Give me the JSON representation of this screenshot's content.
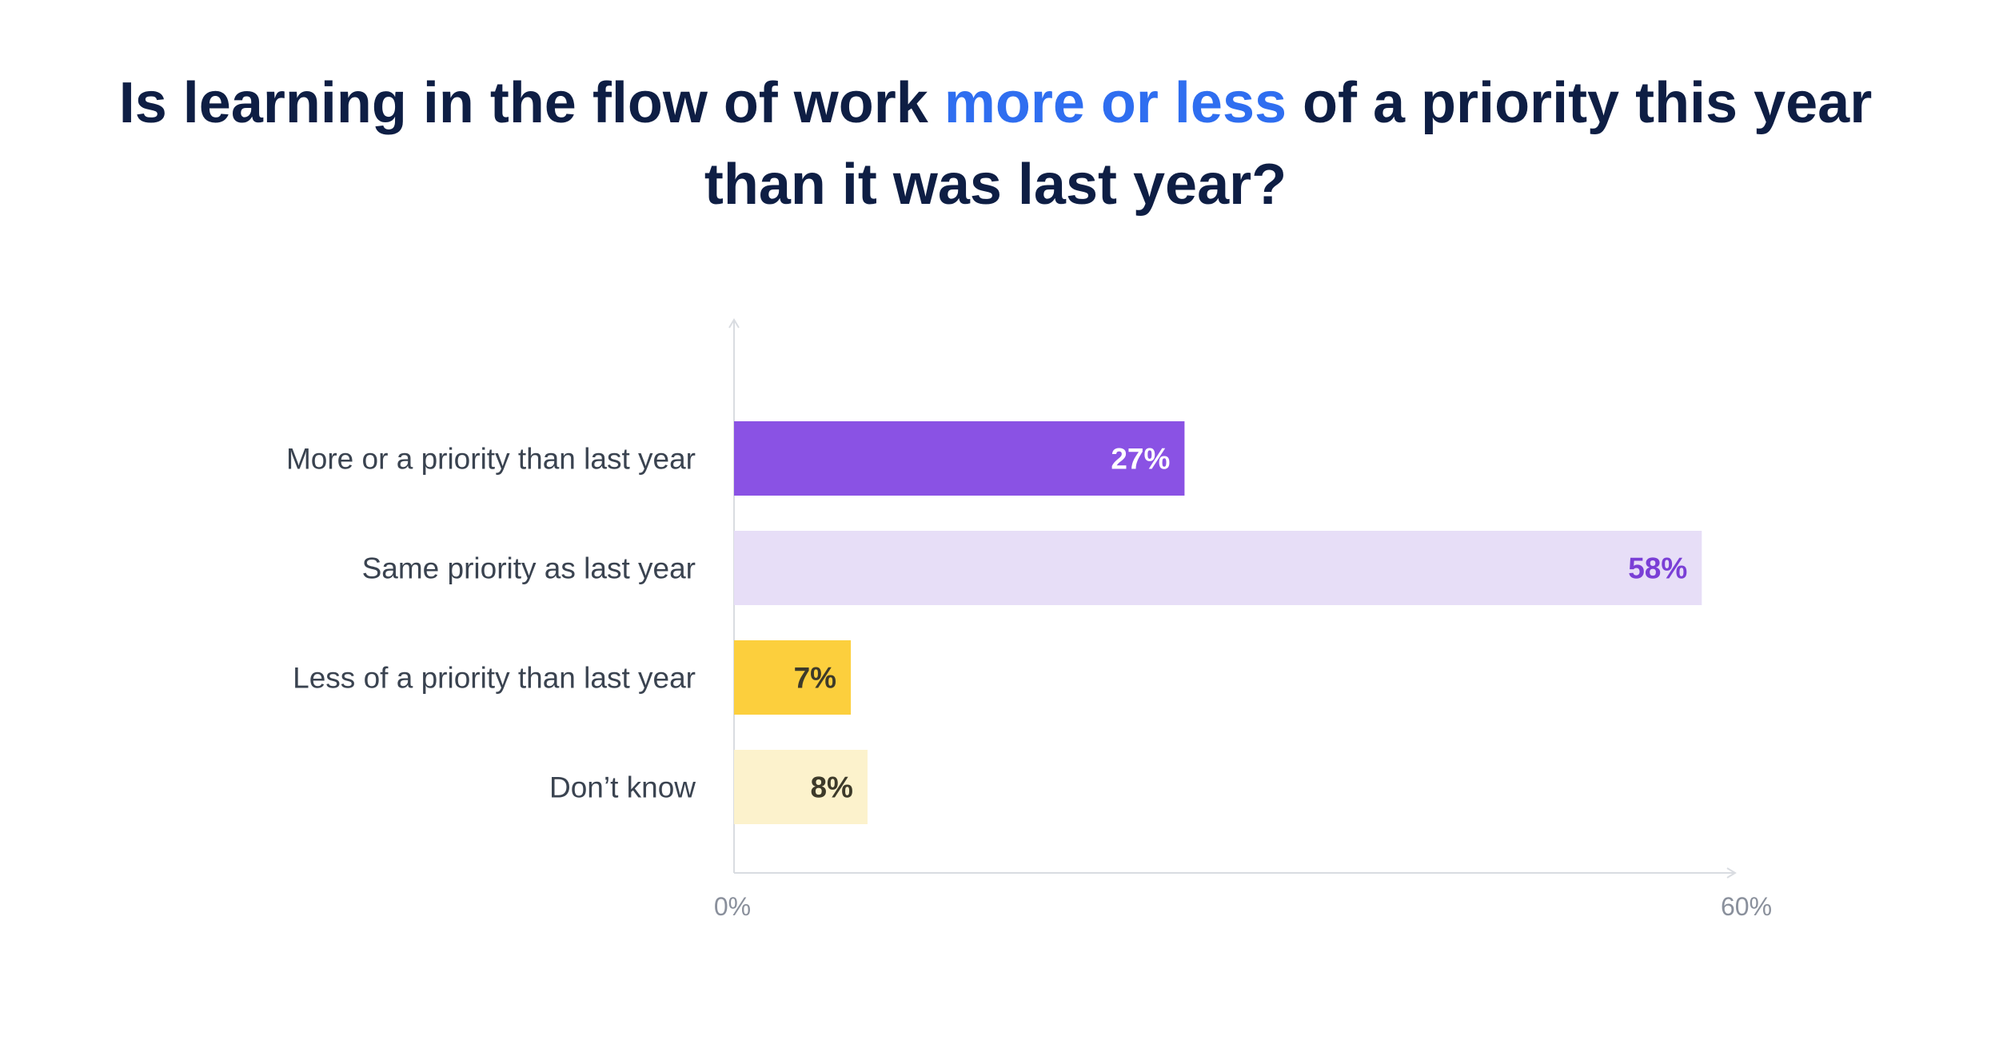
{
  "title": {
    "before": "Is learning in the flow of work ",
    "highlight": "more or less",
    "after": " of a priority this year than it was last year?"
  },
  "colors": {
    "title_text": "#0e1e44",
    "title_highlight": "#2f6ef0",
    "axis": "#d9dce1"
  },
  "chart_data": {
    "type": "bar",
    "orientation": "horizontal",
    "categories": [
      "More or a priority than last year",
      "Same priority as last year",
      "Less of a priority than last year",
      "Don’t know"
    ],
    "values": [
      27,
      58,
      7,
      8
    ],
    "value_labels": [
      "27%",
      "58%",
      "7%",
      "8%"
    ],
    "bar_colors": [
      "#8a52e4",
      "#e7def7",
      "#fccf3d",
      "#fcf2cc"
    ],
    "label_colors": [
      "#ffffff",
      "#7a3fd6",
      "#3d3a2a",
      "#3d3a2a"
    ],
    "xlim": [
      0,
      60
    ],
    "xtick_labels": [
      "0%",
      "60%"
    ],
    "grid": false,
    "legend": "none"
  }
}
